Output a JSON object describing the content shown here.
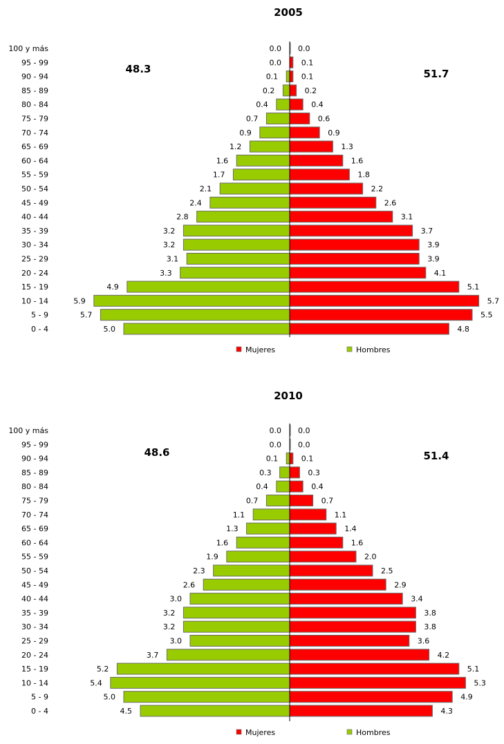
{
  "chart_data": [
    {
      "type": "bar",
      "title": "2005",
      "categories": [
        "100 y más",
        "95 - 99",
        "90 - 94",
        "85 - 89",
        "80 - 84",
        "75 - 79",
        "70 - 74",
        "65 - 69",
        "60 - 64",
        "55 - 59",
        "50 - 54",
        "45 - 49",
        "40 - 44",
        "35 - 39",
        "30 - 34",
        "25 - 29",
        "20 - 24",
        "15 - 19",
        "10 - 14",
        "5 - 9",
        "0 - 4"
      ],
      "series": [
        {
          "name": "Hombres",
          "color": "#99cc00",
          "values": [
            0.0,
            0.0,
            0.1,
            0.2,
            0.4,
            0.7,
            0.9,
            1.2,
            1.6,
            1.7,
            2.1,
            2.4,
            2.8,
            3.2,
            3.2,
            3.1,
            3.3,
            4.9,
            5.9,
            5.7,
            5.0
          ]
        },
        {
          "name": "Mujeres",
          "color": "#ff0000",
          "values": [
            0.0,
            0.1,
            0.1,
            0.2,
            0.4,
            0.6,
            0.9,
            1.3,
            1.6,
            1.8,
            2.2,
            2.6,
            3.1,
            3.7,
            3.9,
            3.9,
            4.1,
            5.1,
            5.7,
            5.5,
            4.8
          ]
        }
      ],
      "totals": {
        "hombres": "48.3",
        "mujeres": "51.7"
      },
      "legend_position": "bottom"
    },
    {
      "type": "bar",
      "title": "2010",
      "categories": [
        "100 y más",
        "95 - 99",
        "90 - 94",
        "85 - 89",
        "80 - 84",
        "75 - 79",
        "70 - 74",
        "65 - 69",
        "60 - 64",
        "55 - 59",
        "50 - 54",
        "45 - 49",
        "40 - 44",
        "35 - 39",
        "30 - 34",
        "25 - 29",
        "20 - 24",
        "15 - 19",
        "10 - 14",
        "5 - 9",
        "0 - 4"
      ],
      "series": [
        {
          "name": "Hombres",
          "color": "#99cc00",
          "values": [
            0.0,
            0.0,
            0.1,
            0.3,
            0.4,
            0.7,
            1.1,
            1.3,
            1.6,
            1.9,
            2.3,
            2.6,
            3.0,
            3.2,
            3.2,
            3.0,
            3.7,
            5.2,
            5.4,
            5.0,
            4.5
          ]
        },
        {
          "name": "Mujeres",
          "color": "#ff0000",
          "values": [
            0.0,
            0.0,
            0.1,
            0.3,
            0.4,
            0.7,
            1.1,
            1.4,
            1.6,
            2.0,
            2.5,
            2.9,
            3.4,
            3.8,
            3.8,
            3.6,
            4.2,
            5.1,
            5.3,
            4.9,
            4.3
          ]
        }
      ],
      "totals": {
        "hombres": "48.6",
        "mujeres": "51.4"
      },
      "legend_position": "bottom"
    }
  ]
}
